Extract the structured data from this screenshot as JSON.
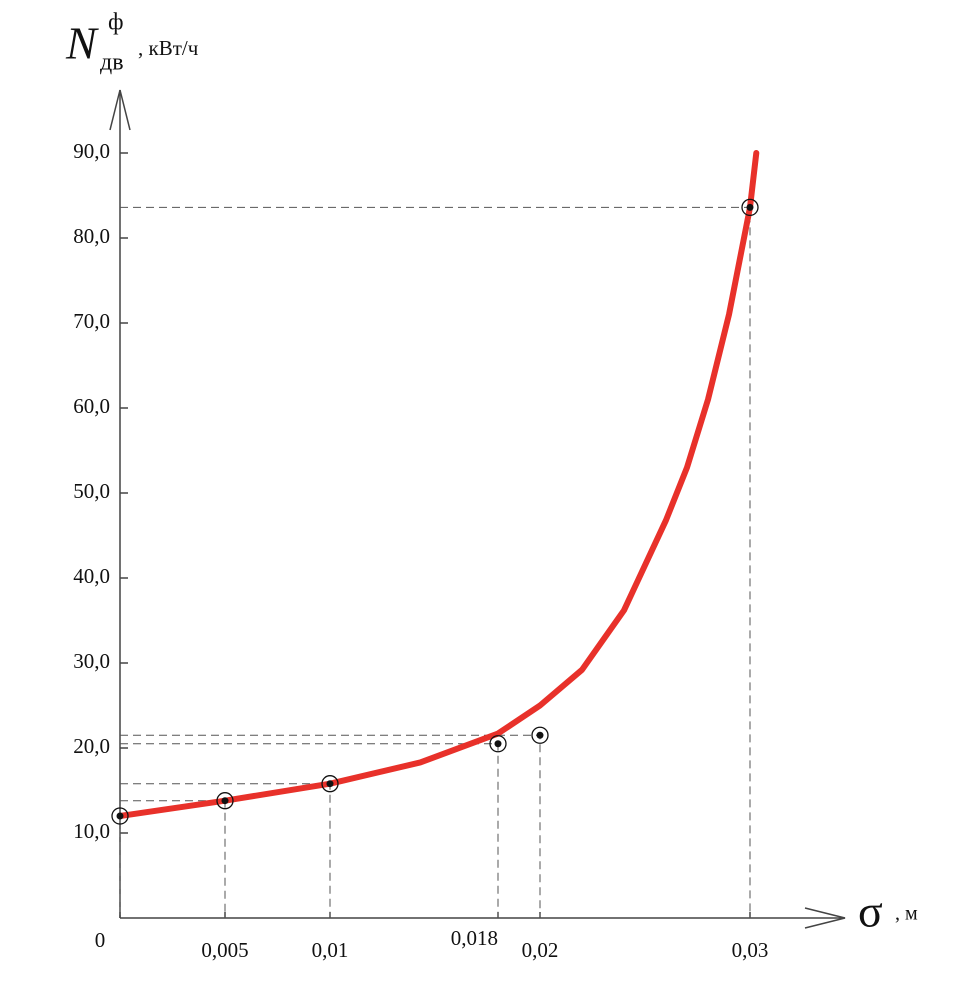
{
  "chart_data": {
    "type": "line",
    "y_label": {
      "symbol": "N",
      "subscript": "дв",
      "superscript": "ф",
      "unit": ", кВт/ч"
    },
    "x_label": {
      "symbol": "σ",
      "unit": ", м"
    },
    "series": [
      {
        "name": null,
        "role": "fit",
        "color": "#e8312a",
        "x": [
          0,
          0.005,
          0.01,
          0.0143,
          0.018,
          0.02,
          0.022,
          0.024,
          0.026,
          0.027,
          0.028,
          0.029,
          0.03,
          0.0303
        ],
        "values": [
          12,
          13.8,
          15.8,
          18.3,
          21.7,
          25,
          29.2,
          36.2,
          46.8,
          53,
          61,
          71,
          83.6,
          90
        ]
      },
      {
        "name": null,
        "role": "points",
        "color": "#111",
        "x": [
          0,
          0.005,
          0.01,
          0.018,
          0.02,
          0.03
        ],
        "values": [
          12,
          13.8,
          15.8,
          20.5,
          21.5,
          83.6
        ]
      }
    ],
    "xlim": [
      0,
      0.034
    ],
    "ylim": [
      0,
      96
    ],
    "xticks": [
      0,
      {
        "value": 0.005,
        "label": "0,005"
      },
      {
        "value": 0.01,
        "label": "0,01"
      },
      {
        "value": 0.018,
        "label": "0,018"
      },
      {
        "value": 0.02,
        "label": "0,02"
      },
      {
        "value": 0.03,
        "label": "0,03"
      }
    ],
    "yticks": [
      {
        "value": 10,
        "label": "10,0"
      },
      {
        "value": 20,
        "label": "20,0"
      },
      {
        "value": 30,
        "label": "30,0"
      },
      {
        "value": 40,
        "label": "40,0"
      },
      {
        "value": 50,
        "label": "50,0"
      },
      {
        "value": 60,
        "label": "60,0"
      },
      {
        "value": 70,
        "label": "70,0"
      },
      {
        "value": 80,
        "label": "80,0"
      },
      {
        "value": 90,
        "label": "90,0"
      }
    ]
  }
}
